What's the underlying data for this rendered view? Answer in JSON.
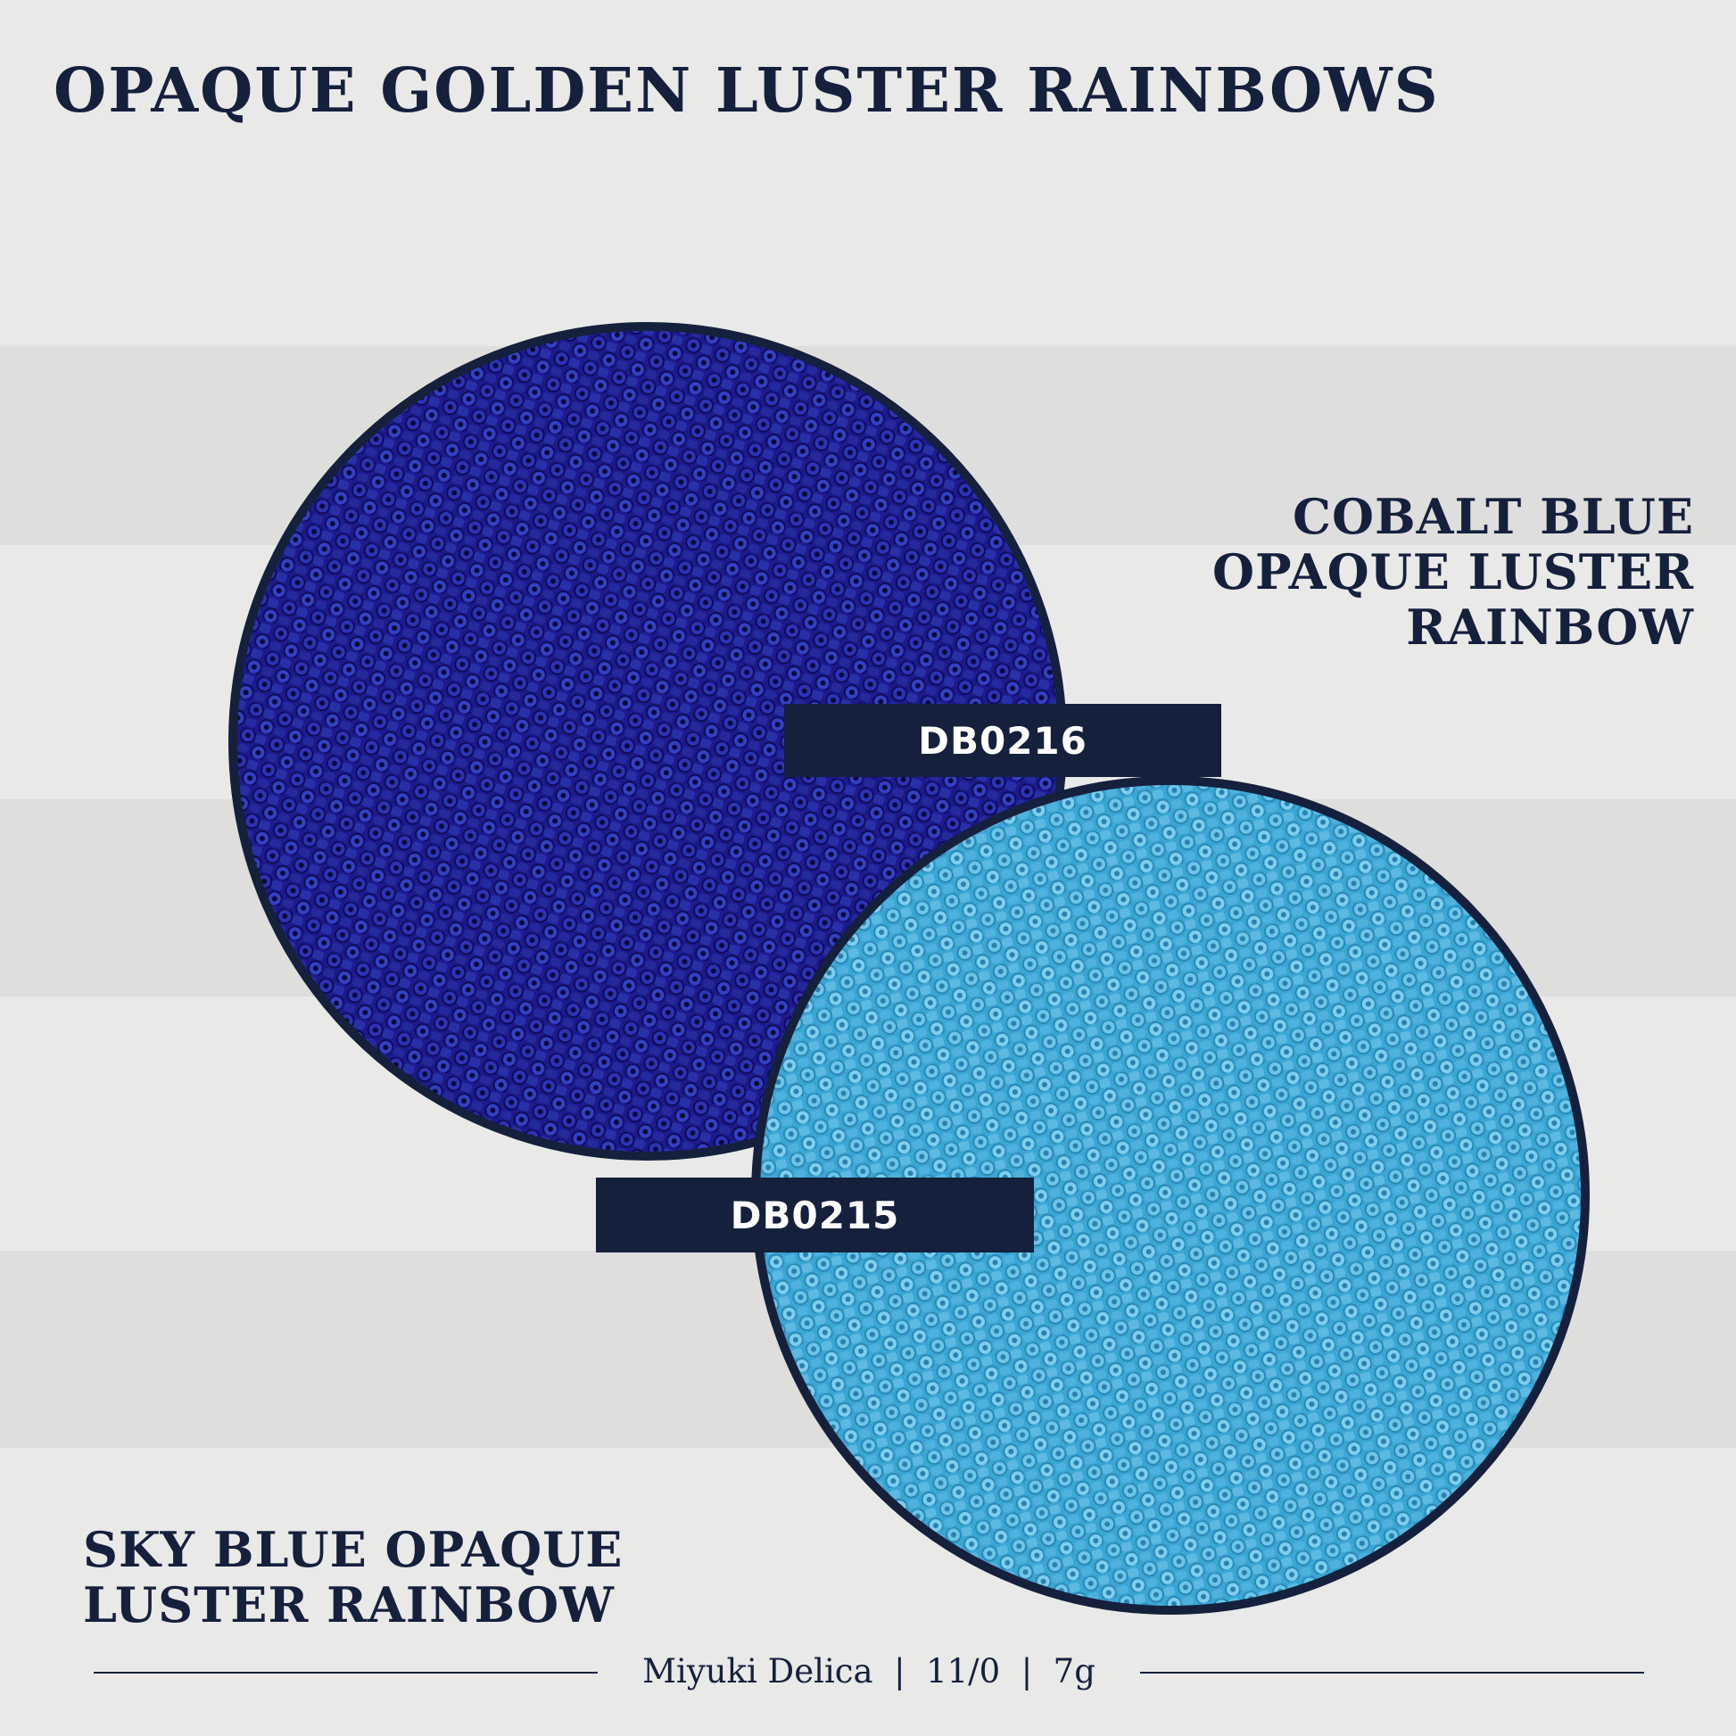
{
  "header": {
    "title": "OPAQUE GOLDEN LUSTER RAINBOWS"
  },
  "products": [
    {
      "name_lines": [
        "COBALT BLUE",
        "OPAQUE LUSTER",
        "RAINBOW"
      ],
      "code": "DB0216"
    },
    {
      "name_lines": [
        "SKY BLUE OPAQUE",
        "LUSTER RAINBOW"
      ],
      "code": "DB0215"
    }
  ],
  "footer": {
    "text": "Miyuki Delica  |  11/0  |  7g"
  }
}
